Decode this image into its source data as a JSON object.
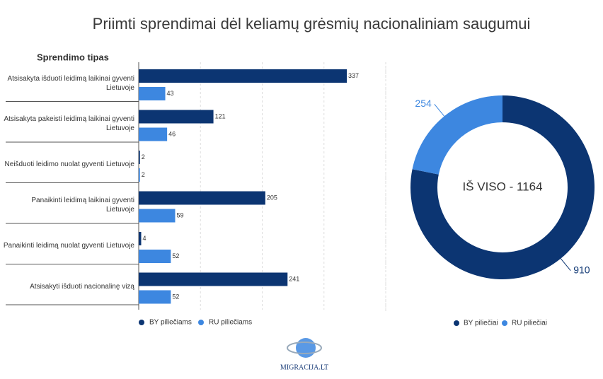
{
  "title": "Priimti sprendimai dėl keliamų grėsmių nacionaliniam saugumui",
  "logo": "MIGRACIJA.LT",
  "chart_data": [
    {
      "type": "bar",
      "orientation": "horizontal",
      "ylabel": "Sprendimo tipas",
      "categories": [
        "Atsisakyta išduoti leidimą laikinai gyventi Lietuvoje",
        "Atsisakyta pakeisti leidimą laikinai gyventi Lietuvoje",
        "Neišduoti leidimo nuolat gyventi Lietuvoje",
        "Panaikinti leidimą laikinai gyventi Lietuvoje",
        "Panaikinti leidimą nuolat gyventi Lietuvoje",
        "Atsisakyti išduoti nacionalinę vizą"
      ],
      "series": [
        {
          "name": "BY piliečiams",
          "color": "#0c3572",
          "values": [
            337,
            121,
            2,
            205,
            4,
            241
          ]
        },
        {
          "name": "RU piliečiams",
          "color": "#3d87e0",
          "values": [
            43,
            46,
            2,
            59,
            52,
            52
          ]
        }
      ],
      "xlim": [
        0,
        400
      ],
      "xticks": [
        0,
        100,
        200,
        300,
        400
      ],
      "grid": true
    },
    {
      "type": "pie",
      "donut": true,
      "center_label": "IŠ VISO - 1164",
      "categories": [
        "BY piliečiai",
        "RU piliečiai"
      ],
      "values": [
        910,
        254
      ],
      "colors": [
        "#0c3572",
        "#3d87e0"
      ]
    }
  ]
}
